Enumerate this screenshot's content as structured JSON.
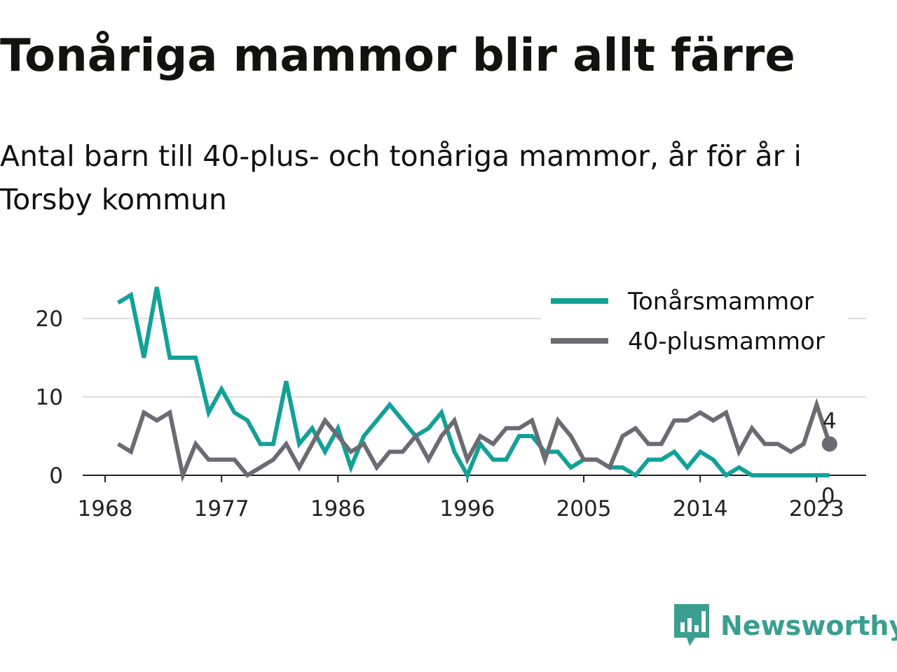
{
  "title": "Tonåriga mammor blir allt färre",
  "subtitle": "Antal barn till 40-plus- och tonåriga mammor, år för år i Torsby kommun",
  "brand": {
    "name": "Newsworthy",
    "color": "#3a9e90",
    "icon": "bar-chart-speech-bubble-icon"
  },
  "chart_data": {
    "type": "line",
    "x": [
      1969,
      1970,
      1971,
      1972,
      1973,
      1974,
      1975,
      1976,
      1977,
      1978,
      1979,
      1980,
      1981,
      1982,
      1983,
      1984,
      1985,
      1986,
      1987,
      1988,
      1989,
      1990,
      1991,
      1992,
      1993,
      1994,
      1995,
      1996,
      1997,
      1998,
      1999,
      2000,
      2001,
      2002,
      2003,
      2004,
      2005,
      2006,
      2007,
      2008,
      2009,
      2010,
      2011,
      2012,
      2013,
      2014,
      2015,
      2016,
      2017,
      2018,
      2019,
      2020,
      2021,
      2022,
      2023,
      2024
    ],
    "series": [
      {
        "name": "Tonårsmammor",
        "color": "#13a197",
        "values": [
          22,
          23,
          15,
          24,
          15,
          15,
          15,
          8,
          11,
          8,
          7,
          4,
          4,
          12,
          4,
          6,
          3,
          6,
          1,
          5,
          7,
          9,
          7,
          5,
          6,
          8,
          3,
          0,
          4,
          2,
          2,
          5,
          5,
          3,
          3,
          1,
          2,
          2,
          1,
          1,
          0,
          2,
          2,
          3,
          1,
          3,
          2,
          0,
          1,
          0,
          0,
          0,
          0,
          0,
          0,
          0
        ]
      },
      {
        "name": "40-plusmammor",
        "color": "#6c6b73",
        "values": [
          4,
          3,
          8,
          7,
          8,
          0,
          4,
          2,
          2,
          2,
          0,
          1,
          2,
          4,
          1,
          4,
          7,
          5,
          3,
          4,
          1,
          3,
          3,
          5,
          2,
          5,
          7,
          2,
          5,
          4,
          6,
          6,
          7,
          2,
          7,
          5,
          2,
          2,
          1,
          5,
          6,
          4,
          4,
          7,
          7,
          8,
          7,
          8,
          3,
          6,
          4,
          4,
          3,
          4,
          9,
          4
        ]
      }
    ],
    "end_labels": {
      "40-plusmammor": "4",
      "Tonårsmammor": "0"
    },
    "x_ticks": [
      "1968",
      "1977",
      "1986",
      "1996",
      "2005",
      "2014",
      "2023"
    ],
    "y_ticks": [
      "0",
      "10",
      "20"
    ],
    "xlim": [
      1968,
      2025
    ],
    "ylim": [
      0,
      25
    ],
    "grid": "horizontal",
    "legend_position": "top-right"
  }
}
